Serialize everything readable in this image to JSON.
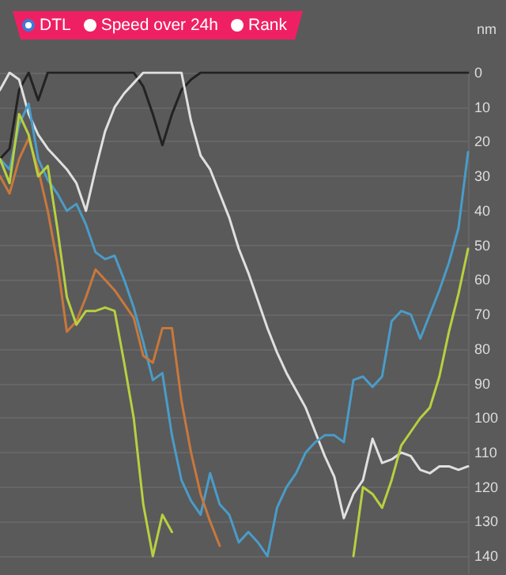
{
  "chart_data": {
    "type": "line",
    "ylabel": "nm",
    "annotations": [
      "DTL",
      "Speed over 24h",
      "Rank"
    ],
    "categories": [
      null,
      null,
      null,
      null,
      null,
      null,
      null,
      null,
      null,
      null,
      null,
      null,
      null,
      null,
      null,
      null,
      null,
      null,
      null,
      null,
      null,
      null,
      null,
      null,
      null,
      null,
      null,
      null,
      null,
      null,
      null,
      null,
      null,
      null,
      null,
      null,
      null,
      null,
      null,
      null,
      null,
      null,
      null,
      null,
      null,
      null,
      null,
      null,
      null,
      null
    ],
    "series": [
      {
        "color": "#222222",
        "values": [
          25,
          22,
          5,
          0,
          8,
          0,
          0,
          0,
          0,
          0,
          0,
          0,
          0,
          0,
          0,
          4,
          12,
          21,
          12,
          5,
          2,
          0,
          0,
          0,
          0,
          0,
          0,
          0,
          0,
          0,
          0,
          0,
          0,
          0,
          0,
          0,
          0,
          0,
          0,
          0,
          0,
          0,
          0,
          0,
          0,
          0,
          0,
          0,
          0,
          0
        ]
      },
      {
        "color": "#e0e0e0",
        "values": [
          5,
          0,
          2,
          12,
          18,
          22,
          25,
          28,
          32,
          40,
          28,
          17,
          10,
          6,
          3,
          0,
          0,
          0,
          0,
          0,
          14,
          24,
          28,
          35,
          42,
          51,
          58,
          66,
          74,
          81,
          87,
          92,
          97,
          104,
          111,
          117,
          129,
          122,
          118,
          106,
          113,
          112,
          110,
          111,
          115,
          116,
          114,
          114,
          115,
          114
        ]
      },
      {
        "color": "#4a9cc8",
        "values": [
          25,
          28,
          15,
          9,
          25,
          31,
          35,
          40,
          38,
          44,
          52,
          54,
          53,
          60,
          68,
          78,
          89,
          87,
          105,
          118,
          124,
          128,
          116,
          125,
          128,
          136,
          133,
          136,
          140,
          126,
          120,
          116,
          110,
          107,
          105,
          105,
          107,
          89,
          88,
          91,
          88,
          72,
          69,
          70,
          77,
          70,
          63,
          55,
          45,
          23
        ]
      },
      {
        "color": "#c8783c",
        "values": [
          30,
          35,
          25,
          19,
          28,
          40,
          55,
          75,
          72,
          65,
          57,
          60,
          63,
          67,
          71,
          82,
          84,
          74,
          74,
          95,
          110,
          122,
          130,
          137,
          null,
          null,
          null,
          null,
          null,
          null,
          null,
          null,
          null,
          null,
          null,
          null,
          null,
          null,
          null,
          null,
          null,
          null,
          null,
          null,
          null,
          null,
          null,
          null,
          null,
          null
        ]
      },
      {
        "color": "#b8d040",
        "values": [
          25,
          32,
          12,
          18,
          30,
          27,
          45,
          65,
          73,
          69,
          69,
          68,
          69,
          84,
          100,
          125,
          140,
          128,
          133,
          null,
          null,
          null,
          null,
          null,
          null,
          null,
          null,
          null,
          null,
          null,
          null,
          null,
          null,
          null,
          null,
          null,
          null,
          140,
          120,
          122,
          126,
          118,
          108,
          104,
          100,
          97,
          88,
          75,
          64,
          51
        ]
      }
    ],
    "ylim": [
      145,
      0
    ],
    "yticks": [
      0,
      10,
      20,
      30,
      40,
      50,
      60,
      70,
      80,
      90,
      100,
      110,
      120,
      130,
      140
    ],
    "grid": "y",
    "tick_labels": "y",
    "marker": "none",
    "line_style": "solid"
  }
}
